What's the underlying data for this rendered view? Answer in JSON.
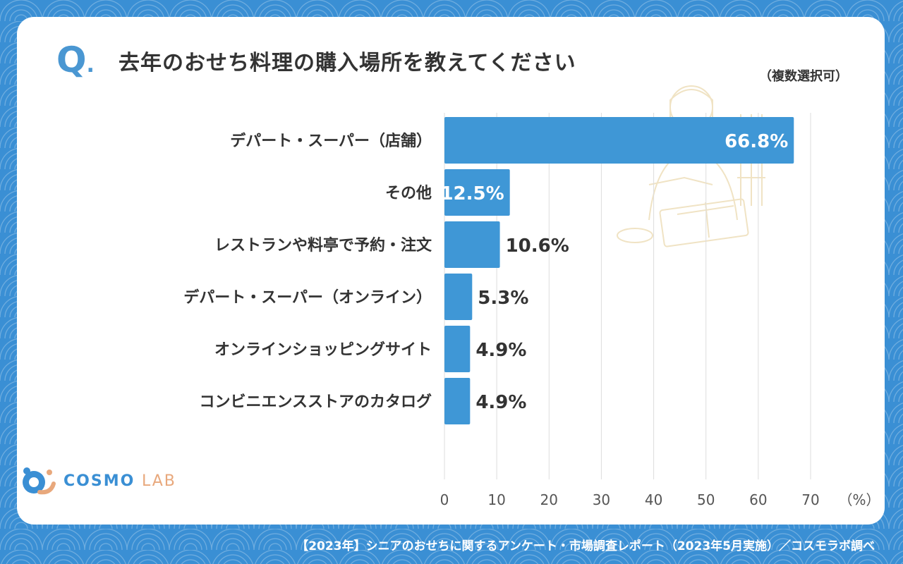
{
  "question_mark": "Q",
  "question": "去年のおせち料理の購入場所を教えてください",
  "note": "（複数選択可）",
  "logo": {
    "main": "COSMO",
    "sub": "LAB"
  },
  "footer": "【2023年】シニアのおせちに関するアンケート・市場調査レポート（2023年5月実施）／コスモラボ調べ",
  "chart_data": {
    "type": "bar",
    "orientation": "horizontal",
    "categories": [
      "デパート・スーパー（店舗）",
      "その他",
      "レストランや料亭で予約・注文",
      "デパート・スーパー（オンライン）",
      "オンラインショッピングサイト",
      "コンビニエンスストアのカタログ"
    ],
    "values": [
      66.8,
      12.5,
      10.6,
      5.3,
      4.9,
      4.9
    ],
    "value_labels": [
      "66.8%",
      "12.5%",
      "10.6%",
      "5.3%",
      "4.9%",
      "4.9%"
    ],
    "xlim": [
      0,
      70
    ],
    "xticks": [
      "0",
      "10",
      "20",
      "30",
      "40",
      "50",
      "60",
      "70"
    ],
    "x_unit": "（%）",
    "grid": true,
    "bar_color": "#3f97d6"
  }
}
